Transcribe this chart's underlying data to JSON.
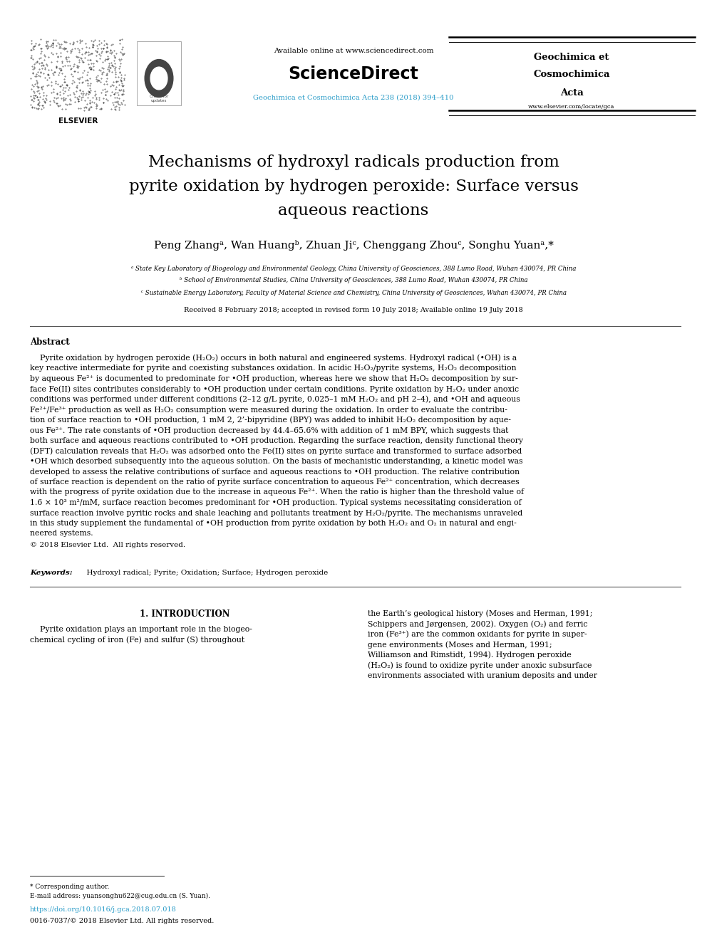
{
  "page_width": 9.92,
  "page_height": 13.23,
  "bg": "#ffffff",
  "link_color": "#2a9cc8",
  "text_color": "#000000",
  "header_available": "Available online at www.sciencedirect.com",
  "header_sd": "ScienceDirect",
  "header_journal_link": "Geochimica et Cosmochimica Acta 238 (2018) 394–410",
  "journal_name": [
    "Geochimica et",
    "Cosmochimica",
    "Acta"
  ],
  "journal_website": "www.elsevier.com/locate/gca",
  "elsevier_label": "ELSEVIER",
  "title_line1": "Mechanisms of hydroxyl radicals production from",
  "title_line2": "pyrite oxidation by hydrogen peroxide: Surface versus",
  "title_line3": "aqueous reactions",
  "author_line": "Peng Zhangᵃ, Wan Huangᵇ, Zhuan Jiᶜ, Chenggang Zhouᶜ, Songhu Yuanᵃ,*",
  "aff1": "ᵃ State Key Laboratory of Biogeology and Environmental Geology, China University of Geosciences, 388 Lumo Road, Wuhan 430074, PR China",
  "aff2": "ᵇ School of Environmental Studies, China University of Geosciences, 388 Lumo Road, Wuhan 430074, PR China",
  "aff3": "ᶜ Sustainable Energy Laboratory, Faculty of Material Science and Chemistry, China University of Geosciences, Wuhan 430074, PR China",
  "received": "Received 8 February 2018; accepted in revised form 10 July 2018; Available online 19 July 2018",
  "abstract_label": "Abstract",
  "abstract_p1": "    Pyrite oxidation by hydrogen peroxide (H₂O₂) occurs in both natural and engineered systems. Hydroxyl radical (•OH) is a",
  "abstract_p2": "key reactive intermediate for pyrite and coexisting substances oxidation. In acidic H₂O₂/pyrite systems, H₂O₂ decomposition",
  "abstract_p3": "by aqueous Fe²⁺ is documented to predominate for •OH production, whereas here we show that H₂O₂ decomposition by sur-",
  "abstract_p4": "face Fe(II) sites contributes considerably to •OH production under certain conditions. Pyrite oxidation by H₂O₂ under anoxic",
  "abstract_p5": "conditions was performed under different conditions (2–12 g/L pyrite, 0.025–1 mM H₂O₂ and pH 2–4), and •OH and aqueous",
  "abstract_p6": "Fe²⁺/Fe³⁺ production as well as H₂O₂ consumption were measured during the oxidation. In order to evaluate the contribu-",
  "abstract_p7": "tion of surface reaction to •OH production, 1 mM 2, 2’-bipyridine (BPY) was added to inhibit H₂O₂ decomposition by aque-",
  "abstract_p8": "ous Fe²⁺. The rate constants of •OH production decreased by 44.4–65.6% with addition of 1 mM BPY, which suggests that",
  "abstract_p9": "both surface and aqueous reactions contributed to •OH production. Regarding the surface reaction, density functional theory",
  "abstract_p10": "(DFT) calculation reveals that H₂O₂ was adsorbed onto the Fe(II) sites on pyrite surface and transformed to surface adsorbed",
  "abstract_p11": "•OH which desorbed subsequently into the aqueous solution. On the basis of mechanistic understanding, a kinetic model was",
  "abstract_p12": "developed to assess the relative contributions of surface and aqueous reactions to •OH production. The relative contribution",
  "abstract_p13": "of surface reaction is dependent on the ratio of pyrite surface concentration to aqueous Fe²⁺ concentration, which decreases",
  "abstract_p14": "with the progress of pyrite oxidation due to the increase in aqueous Fe²⁺. When the ratio is higher than the threshold value of",
  "abstract_p15": "1.6 × 10³ m²/mM, surface reaction becomes predominant for •OH production. Typical systems necessitating consideration of",
  "abstract_p16": "surface reaction involve pyritic rocks and shale leaching and pollutants treatment by H₂O₂/pyrite. The mechanisms unraveled",
  "abstract_p17": "in this study supplement the fundamental of •OH production from pyrite oxidation by both H₂O₂ and O₂ in natural and engi-",
  "abstract_p18": "neered systems.",
  "copyright": "© 2018 Elsevier Ltd.  All rights reserved.",
  "kw_label": "Keywords:",
  "kw_body": "  Hydroxyl radical; Pyrite; Oxidation; Surface; Hydrogen peroxide",
  "intro_title": "1. INTRODUCTION",
  "intro_l1": "    Pyrite oxidation plays an important role in the biogeo-",
  "intro_l2": "chemical cycling of iron (Fe) and sulfur (S) throughout",
  "intro_r1": "the Earth’s geological history (Moses and Herman, 1991;",
  "intro_r2": "Schippers and Jørgensen, 2002). Oxygen (O₂) and ferric",
  "intro_r3": "iron (Fe³⁺) are the common oxidants for pyrite in super-",
  "intro_r4": "gene environments (Moses and Herman, 1991;",
  "intro_r5": "Williamson and Rimstidt, 1994). Hydrogen peroxide",
  "intro_r6": "(H₂O₂) is found to oxidize pyrite under anoxic subsurface",
  "intro_r7": "environments associated with uranium deposits and under",
  "fn_star": "* Corresponding author.",
  "fn_email_pre": "E-mail address: ",
  "fn_email": "yuansonghu622@cug.edu.cn",
  "fn_email_post": " (S. Yuan).",
  "doi": "https://doi.org/10.1016/j.gca.2018.07.018",
  "issn": "0016-7037/© 2018 Elsevier Ltd. All rights reserved."
}
